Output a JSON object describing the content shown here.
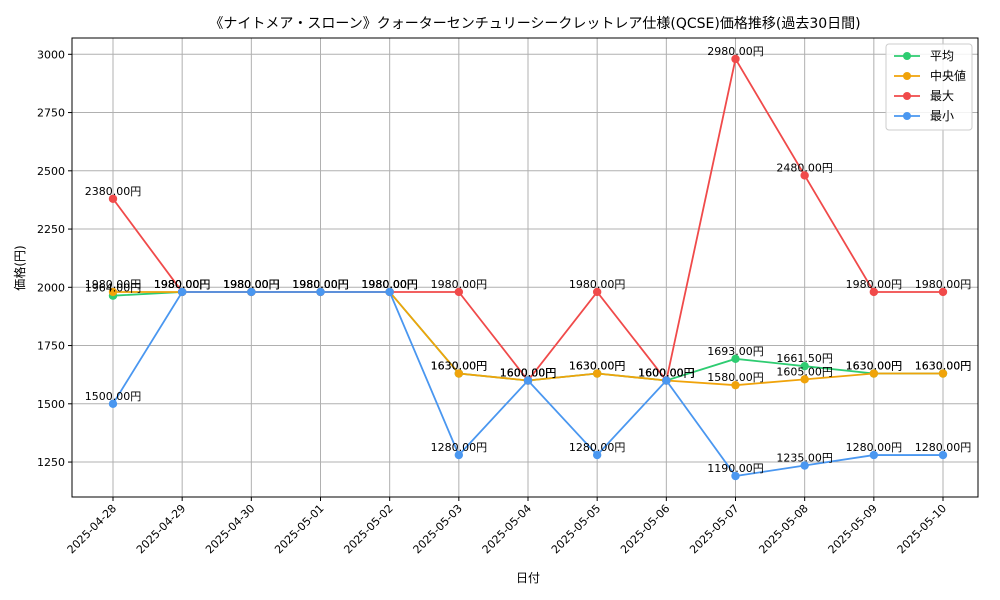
{
  "chart_data": {
    "type": "line",
    "title": "《ナイトメア・スローン》クォーターセンチュリーシークレットレア仕様(QCSE)価格推移(過去30日間)",
    "xlabel": "日付",
    "ylabel": "価格(円)",
    "categories": [
      "2025-04-28",
      "2025-04-29",
      "2025-04-30",
      "2025-05-01",
      "2025-05-02",
      "2025-05-03",
      "2025-05-04",
      "2025-05-05",
      "2025-05-06",
      "2025-05-07",
      "2025-05-08",
      "2025-05-09",
      "2025-05-10"
    ],
    "ylim": [
      1100,
      3070
    ],
    "yticks": [
      1250,
      1500,
      1750,
      2000,
      2250,
      2500,
      2750,
      3000
    ],
    "grid": true,
    "legend_position": "top-right",
    "label_suffix": "円",
    "series": [
      {
        "name": "平均",
        "color": "#2ecc71",
        "values": [
          1964,
          1980,
          1980,
          1980,
          1980,
          1630,
          1600,
          1630,
          1600,
          1693,
          1661.5,
          1630,
          1630
        ]
      },
      {
        "name": "中央値",
        "color": "#f0a30a",
        "values": [
          1980,
          1980,
          1980,
          1980,
          1980,
          1630,
          1600,
          1630,
          1600,
          1580,
          1605,
          1630,
          1630
        ]
      },
      {
        "name": "最大",
        "color": "#f04a4a",
        "values": [
          2380,
          1980,
          1980,
          1980,
          1980,
          1980,
          1600,
          1980,
          1600,
          2980,
          2480,
          1980,
          1980
        ]
      },
      {
        "name": "最小",
        "color": "#4a97f0",
        "values": [
          1500,
          1980,
          1980,
          1980,
          1980,
          1280,
          1600,
          1280,
          1600,
          1190,
          1235,
          1280,
          1280
        ]
      }
    ]
  }
}
